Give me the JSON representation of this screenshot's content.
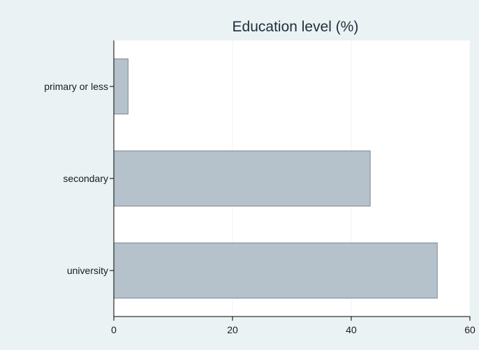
{
  "chart_data": {
    "type": "bar",
    "orientation": "horizontal",
    "title": "Education level (%)",
    "categories": [
      "primary or less",
      "secondary",
      "university"
    ],
    "values": [
      2.4,
      43.2,
      54.5
    ],
    "xlabel": "",
    "ylabel": "",
    "xlim": [
      0,
      60
    ],
    "xticks": [
      0,
      20,
      40,
      60
    ],
    "grid": true,
    "colors": {
      "bar_fill": "#b5c2cc",
      "bar_stroke": "#7d8893",
      "background": "#eaf2f3",
      "plot_background": "#ffffff"
    }
  }
}
